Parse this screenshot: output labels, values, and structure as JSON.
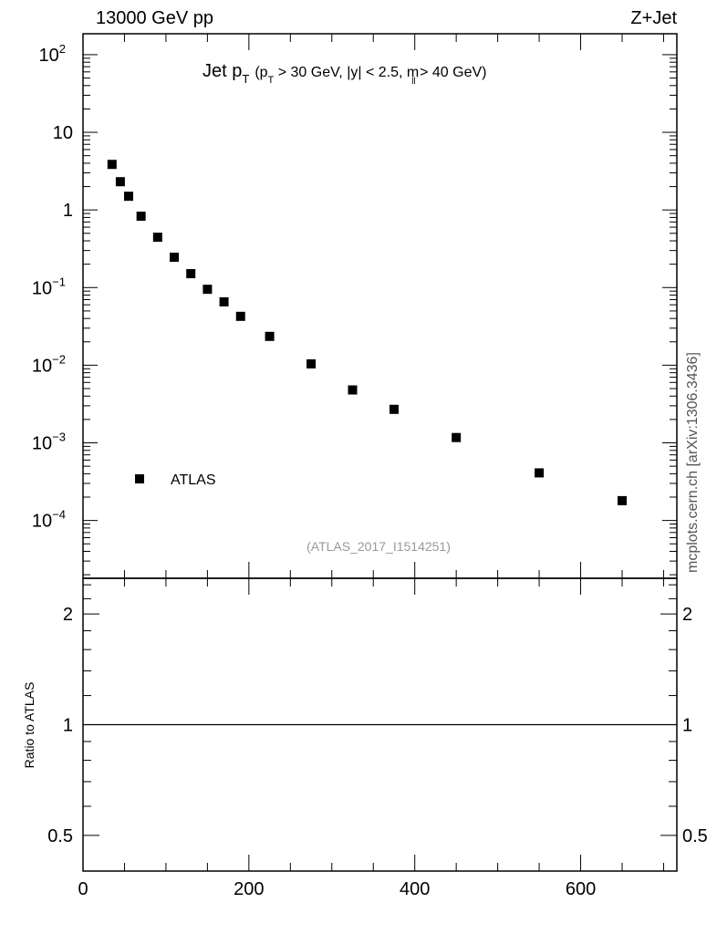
{
  "header": {
    "left": "13000 GeV pp",
    "right": "Z+Jet",
    "side_label": "mcplots.cern.ch [arXiv:1306.3436]"
  },
  "chart_data": [
    {
      "type": "scatter",
      "title_main": "Jet p",
      "title_main_sub": "T",
      "title_cuts": [
        "(p",
        "T",
        " > 30 GeV, |y| < 2.5, m",
        "ll",
        " > 40 GeV)"
      ],
      "analysis_label": "(ATLAS_2017_I1514251)",
      "yscale": "log",
      "xlim": [
        0,
        716
      ],
      "ylim": [
        1.8e-05,
        186
      ],
      "ytick_labels": [
        {
          "value": 100,
          "base": "10",
          "exp": "2"
        },
        {
          "value": 10,
          "base": "10",
          "exp": ""
        },
        {
          "value": 1,
          "base": "1",
          "exp": ""
        },
        {
          "value": 0.1,
          "base": "10",
          "exp": "−1"
        },
        {
          "value": 0.01,
          "base": "10",
          "exp": "−2"
        },
        {
          "value": 0.001,
          "base": "10",
          "exp": "−3"
        },
        {
          "value": 0.0001,
          "base": "10",
          "exp": "−4"
        }
      ],
      "legend": {
        "entries": [
          "ATLAS"
        ],
        "placement": "bottom-left"
      },
      "series": [
        {
          "name": "ATLAS",
          "color": "#000000",
          "x": [
            35,
            45,
            55,
            70,
            90,
            110,
            130,
            150,
            170,
            190,
            225,
            275,
            325,
            375,
            450,
            550,
            650
          ],
          "y": [
            3.86,
            2.31,
            1.5,
            0.83,
            0.445,
            0.246,
            0.151,
            0.095,
            0.0655,
            0.0426,
            0.0235,
            0.0104,
            0.0048,
            0.0027,
            0.00117,
            0.00041,
            0.00018
          ]
        }
      ]
    },
    {
      "type": "line",
      "ylabel": "Ratio to ATLAS",
      "yscale": "log",
      "xlim": [
        0,
        716
      ],
      "ylim": [
        0.4,
        2.5
      ],
      "yticks": [
        0.5,
        1,
        2
      ],
      "ytick_labels": [
        "0.5",
        "1",
        "2"
      ],
      "xticks": [
        0,
        200,
        400,
        600
      ],
      "xtick_labels": [
        "0",
        "200",
        "400",
        "600"
      ],
      "reference_line": 1
    }
  ]
}
